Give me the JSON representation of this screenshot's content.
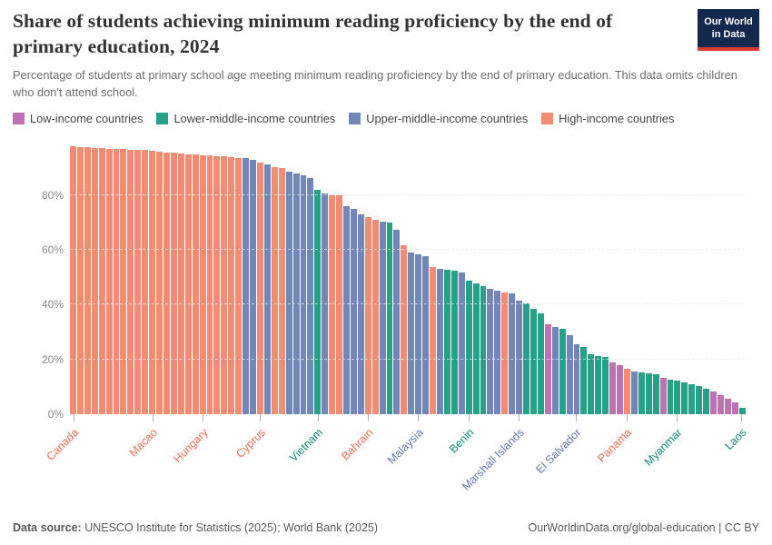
{
  "header": {
    "title": "Share of students achieving minimum reading proficiency by the end of primary education, 2024",
    "subtitle": "Percentage of students at primary school age meeting minimum reading proficiency by the end of primary education. This data omits children who don't attend school.",
    "logo": {
      "line1": "Our World",
      "line2": "in Data",
      "bg_color": "#12294d",
      "accent_color": "#dc3c30"
    }
  },
  "legend": {
    "items": [
      {
        "key": "lo",
        "label": "Low-income countries"
      },
      {
        "key": "lm",
        "label": "Lower-middle-income countries"
      },
      {
        "key": "um",
        "label": "Upper-middle-income countries"
      },
      {
        "key": "hi",
        "label": "High-income countries"
      }
    ]
  },
  "chart_data": {
    "type": "bar",
    "title": "Share of students achieving minimum reading proficiency by the end of primary education, 2024",
    "xlabel": "",
    "ylabel": "",
    "ylim": [
      0,
      100
    ],
    "yticks": [
      0,
      20,
      40,
      60,
      80
    ],
    "ytick_suffix": "%",
    "grid": "horizontal-dashed",
    "legend_position": "top",
    "groups": {
      "hi": {
        "label": "High-income countries",
        "color": "#f28b73",
        "label_color": "#ec7056"
      },
      "um": {
        "label": "Upper-middle-income countries",
        "color": "#7386b8",
        "label_color": "#6379ad"
      },
      "lm": {
        "label": "Lower-middle-income countries",
        "color": "#26a187",
        "label_color": "#128a7c"
      },
      "lo": {
        "label": "Low-income countries",
        "color": "#bd73b3",
        "label_color": "#ad62a4"
      }
    },
    "bars": [
      {
        "v": 97.8,
        "g": "hi",
        "label": "Canada"
      },
      {
        "v": 97.5,
        "g": "hi"
      },
      {
        "v": 97.3,
        "g": "hi"
      },
      {
        "v": 97.2,
        "g": "hi"
      },
      {
        "v": 97.0,
        "g": "hi"
      },
      {
        "v": 96.9,
        "g": "hi"
      },
      {
        "v": 96.8,
        "g": "hi"
      },
      {
        "v": 96.7,
        "g": "hi"
      },
      {
        "v": 96.6,
        "g": "hi"
      },
      {
        "v": 96.5,
        "g": "hi"
      },
      {
        "v": 96.3,
        "g": "hi"
      },
      {
        "v": 96.1,
        "g": "hi",
        "label": "Macao"
      },
      {
        "v": 95.8,
        "g": "hi"
      },
      {
        "v": 95.5,
        "g": "hi"
      },
      {
        "v": 95.3,
        "g": "hi"
      },
      {
        "v": 95.1,
        "g": "hi"
      },
      {
        "v": 94.9,
        "g": "hi"
      },
      {
        "v": 94.7,
        "g": "hi"
      },
      {
        "v": 94.5,
        "g": "hi",
        "label": "Hungary"
      },
      {
        "v": 94.3,
        "g": "hi"
      },
      {
        "v": 94.2,
        "g": "hi"
      },
      {
        "v": 94.0,
        "g": "hi"
      },
      {
        "v": 93.8,
        "g": "hi"
      },
      {
        "v": 93.6,
        "g": "hi"
      },
      {
        "v": 93.3,
        "g": "um"
      },
      {
        "v": 92.8,
        "g": "um"
      },
      {
        "v": 91.9,
        "g": "hi",
        "label": "Cyprus"
      },
      {
        "v": 91.3,
        "g": "um"
      },
      {
        "v": 90.3,
        "g": "hi"
      },
      {
        "v": 89.7,
        "g": "hi"
      },
      {
        "v": 88.5,
        "g": "um"
      },
      {
        "v": 87.9,
        "g": "um"
      },
      {
        "v": 87.2,
        "g": "um"
      },
      {
        "v": 86.3,
        "g": "um"
      },
      {
        "v": 81.9,
        "g": "lm",
        "label": "Vietnam"
      },
      {
        "v": 80.7,
        "g": "um"
      },
      {
        "v": 80.0,
        "g": "hi"
      },
      {
        "v": 79.8,
        "g": "hi"
      },
      {
        "v": 76.0,
        "g": "um"
      },
      {
        "v": 74.9,
        "g": "um"
      },
      {
        "v": 72.9,
        "g": "um"
      },
      {
        "v": 71.8,
        "g": "hi",
        "label": "Bahrain"
      },
      {
        "v": 71.0,
        "g": "hi"
      },
      {
        "v": 70.3,
        "g": "um"
      },
      {
        "v": 70.0,
        "g": "lm"
      },
      {
        "v": 67.4,
        "g": "um"
      },
      {
        "v": 61.8,
        "g": "hi"
      },
      {
        "v": 59.0,
        "g": "um"
      },
      {
        "v": 58.3,
        "g": "um",
        "label": "Malaysia"
      },
      {
        "v": 57.6,
        "g": "um"
      },
      {
        "v": 53.8,
        "g": "hi"
      },
      {
        "v": 53.2,
        "g": "um"
      },
      {
        "v": 52.8,
        "g": "lm"
      },
      {
        "v": 52.3,
        "g": "lm"
      },
      {
        "v": 51.7,
        "g": "um"
      },
      {
        "v": 48.6,
        "g": "lm",
        "label": "Benin"
      },
      {
        "v": 47.8,
        "g": "lm"
      },
      {
        "v": 46.8,
        "g": "lm"
      },
      {
        "v": 45.8,
        "g": "um"
      },
      {
        "v": 45.2,
        "g": "um"
      },
      {
        "v": 44.6,
        "g": "hi"
      },
      {
        "v": 44.0,
        "g": "um"
      },
      {
        "v": 41.4,
        "g": "um",
        "label": "Marshall Islands"
      },
      {
        "v": 40.6,
        "g": "lm"
      },
      {
        "v": 38.4,
        "g": "lm"
      },
      {
        "v": 36.8,
        "g": "lm"
      },
      {
        "v": 32.8,
        "g": "lo"
      },
      {
        "v": 32.0,
        "g": "um"
      },
      {
        "v": 31.2,
        "g": "lm"
      },
      {
        "v": 28.8,
        "g": "um"
      },
      {
        "v": 25.5,
        "g": "um",
        "label": "El Salvador"
      },
      {
        "v": 24.7,
        "g": "lm"
      },
      {
        "v": 21.9,
        "g": "lm"
      },
      {
        "v": 21.3,
        "g": "lm"
      },
      {
        "v": 20.8,
        "g": "lm"
      },
      {
        "v": 18.9,
        "g": "lo"
      },
      {
        "v": 18.1,
        "g": "lo"
      },
      {
        "v": 16.6,
        "g": "hi",
        "label": "Panama"
      },
      {
        "v": 15.8,
        "g": "um"
      },
      {
        "v": 15.3,
        "g": "lm"
      },
      {
        "v": 15.0,
        "g": "lm"
      },
      {
        "v": 14.6,
        "g": "lm"
      },
      {
        "v": 13.3,
        "g": "lo"
      },
      {
        "v": 12.8,
        "g": "lm"
      },
      {
        "v": 12.2,
        "g": "lm",
        "label": "Myanmar"
      },
      {
        "v": 11.7,
        "g": "lm"
      },
      {
        "v": 11.1,
        "g": "lm"
      },
      {
        "v": 10.2,
        "g": "lm"
      },
      {
        "v": 9.5,
        "g": "lm"
      },
      {
        "v": 8.3,
        "g": "lo"
      },
      {
        "v": 7.2,
        "g": "lo"
      },
      {
        "v": 5.8,
        "g": "lo"
      },
      {
        "v": 4.5,
        "g": "lo"
      },
      {
        "v": 2.3,
        "g": "lm",
        "label": "Laos"
      }
    ]
  },
  "footer": {
    "datasource_label": "Data source:",
    "datasource_text": " UNESCO Institute for Statistics (2025); World Bank (2025)",
    "right_text": "OurWorldinData.org/global-education | CC BY"
  }
}
